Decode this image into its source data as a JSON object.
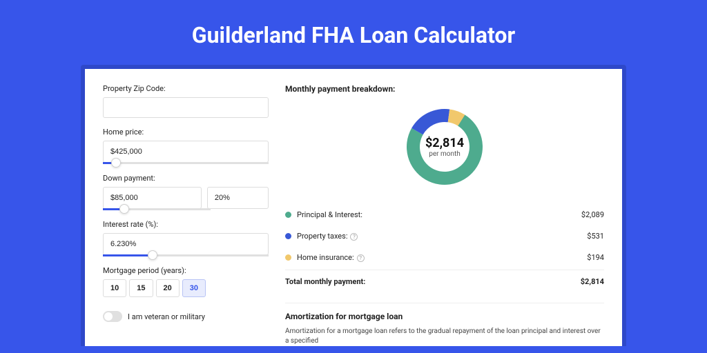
{
  "page_title": "Guilderland FHA Loan Calculator",
  "background_color": "#3755ea",
  "form": {
    "zip_label": "Property Zip Code:",
    "zip_value": "",
    "home_price_label": "Home price:",
    "home_price_value": "$425,000",
    "home_price_slider_pct": 8,
    "down_payment_label": "Down payment:",
    "down_payment_value": "$85,000",
    "down_payment_pct_value": "20%",
    "down_payment_slider_pct": 20,
    "interest_label": "Interest rate (%):",
    "interest_value": "6.230%",
    "interest_slider_pct": 30,
    "period_label": "Mortgage period (years):",
    "period_options": [
      "10",
      "15",
      "20",
      "30"
    ],
    "period_selected": "30",
    "veteran_label": "I am veteran or military",
    "veteran_on": false
  },
  "breakdown": {
    "title": "Monthly payment breakdown:",
    "donut": {
      "amount": "$2,814",
      "sub": "per month",
      "segments": [
        {
          "label": "Principal & Interest",
          "pct": 74.3,
          "color": "#4eab8e"
        },
        {
          "label": "Property taxes",
          "pct": 18.9,
          "color": "#3858d6"
        },
        {
          "label": "Home insurance",
          "pct": 6.9,
          "color": "#f1c86c"
        }
      ]
    },
    "items": [
      {
        "label": "Principal & Interest:",
        "value": "$2,089",
        "color": "#4eab8e",
        "help": false
      },
      {
        "label": "Property taxes:",
        "value": "$531",
        "color": "#3858d6",
        "help": true
      },
      {
        "label": "Home insurance:",
        "value": "$194",
        "color": "#f1c86c",
        "help": true
      }
    ],
    "total_label": "Total monthly payment:",
    "total_value": "$2,814"
  },
  "amortization": {
    "title": "Amortization for mortgage loan",
    "text": "Amortization for a mortgage loan refers to the gradual repayment of the loan principal and interest over a specified"
  }
}
